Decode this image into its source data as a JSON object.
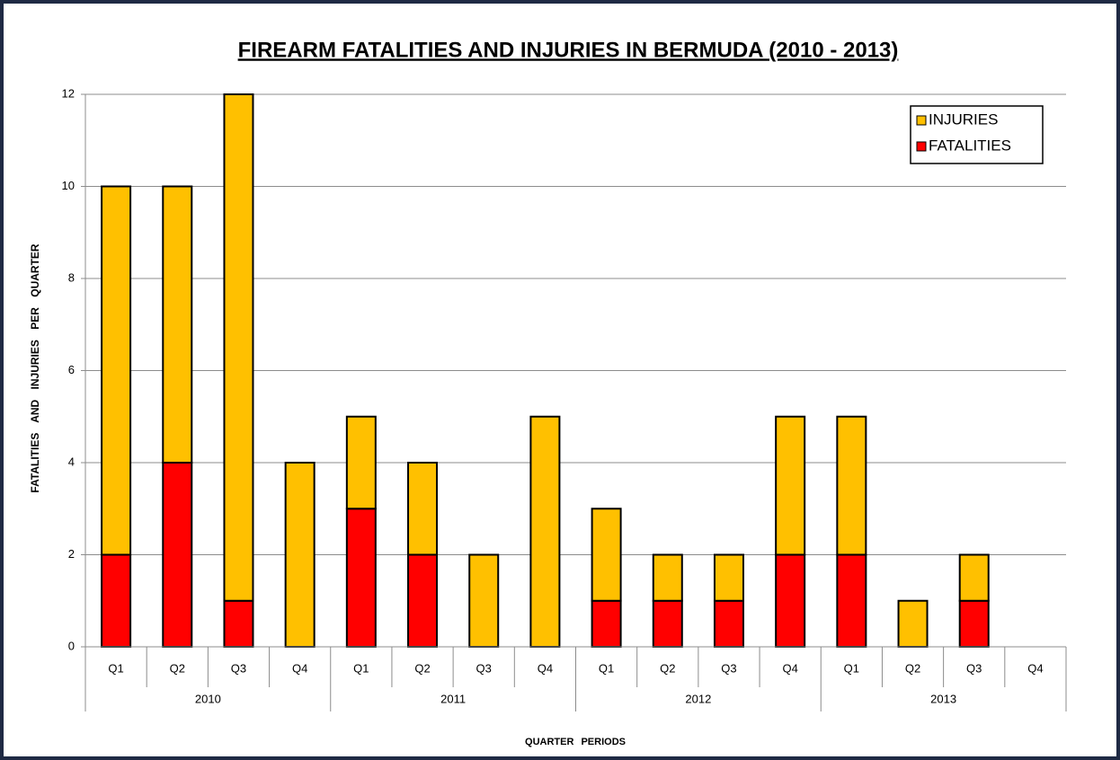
{
  "chart_data": {
    "type": "stacked_bar",
    "title": "FIREARM FATALITIES AND INJURIES IN BERMUDA (2010 - 2013)",
    "y_label": "FATALITIES AND INJURIES PER QUARTER",
    "x_label": "QUARTER PERIODS",
    "categories": [
      "Q1",
      "Q2",
      "Q3",
      "Q4",
      "Q1",
      "Q2",
      "Q3",
      "Q4",
      "Q1",
      "Q2",
      "Q3",
      "Q4",
      "Q1",
      "Q2",
      "Q3",
      "Q4"
    ],
    "groups": [
      "2010",
      "2011",
      "2012",
      "2013"
    ],
    "series": [
      {
        "name": "FATALITIES",
        "color": "#ff0000",
        "values": [
          2,
          4,
          1,
          0,
          3,
          2,
          0,
          0,
          1,
          1,
          1,
          2,
          2,
          0,
          1,
          null
        ]
      },
      {
        "name": "INJURIES",
        "color": "#ffc000",
        "values": [
          8,
          6,
          11,
          4,
          2,
          2,
          2,
          5,
          2,
          1,
          1,
          3,
          3,
          1,
          1,
          null
        ]
      }
    ],
    "ylim": [
      0,
      12
    ],
    "yticks": [
      0,
      2,
      4,
      6,
      8,
      10,
      12
    ],
    "grid": true,
    "legend": "top-right"
  }
}
